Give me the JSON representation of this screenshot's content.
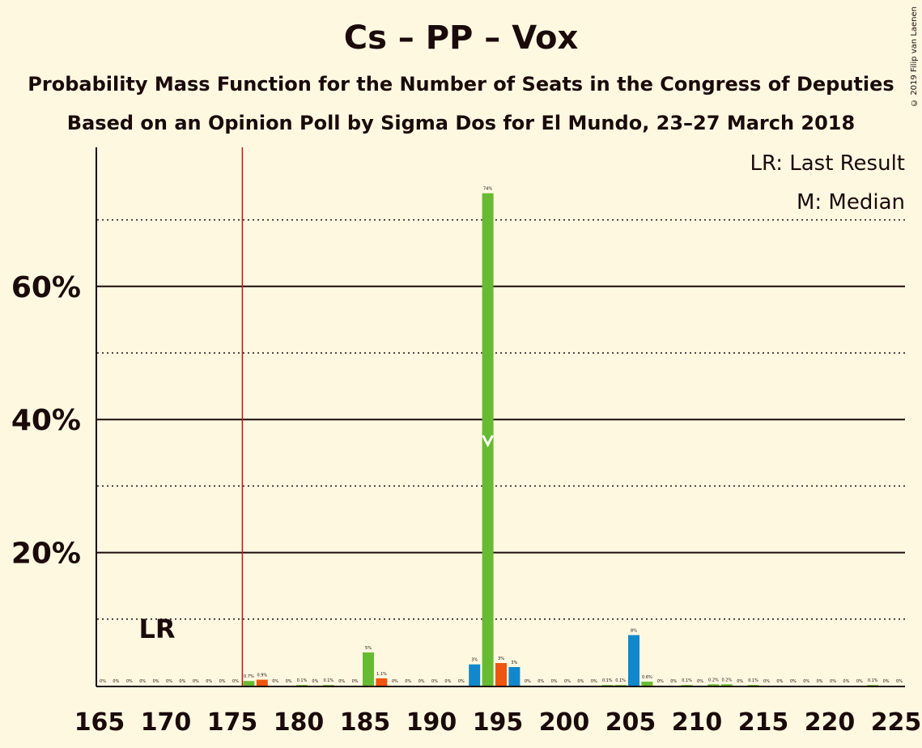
{
  "header": {
    "title": "Cs – PP – Vox",
    "subtitle": "Probability Mass Function for the Number of Seats in the Congress of Deputies",
    "subtitle2": "Based on an Opinion Poll by Sigma Dos for El Mundo, 23–27 March 2018",
    "copyright": "© 2019 Filip van Laenen"
  },
  "legend": {
    "lr": "LR: Last Result",
    "m": "M: Median"
  },
  "colors": {
    "background": "#fff8e1",
    "green": "#66bb33",
    "orange": "#ee5511",
    "blue": "#1188cc",
    "lr_line": "#cc1111",
    "text": "#1a0a0a"
  },
  "chart_data": {
    "type": "bar",
    "xlim": [
      165,
      225
    ],
    "ylim": [
      0,
      80
    ],
    "yticks_major": [
      20,
      40,
      60
    ],
    "ytick_labels": [
      "20%",
      "40%",
      "60%"
    ],
    "yticks_minor": [
      10,
      30,
      50,
      70
    ],
    "xticks": [
      165,
      170,
      175,
      180,
      185,
      190,
      195,
      200,
      205,
      210,
      215,
      220,
      225
    ],
    "last_result": {
      "seat": 176,
      "label": "LR"
    },
    "median": {
      "seat": 194
    },
    "bars": [
      {
        "x": 165,
        "v": 0,
        "c": "green",
        "label": "0%"
      },
      {
        "x": 166,
        "v": 0,
        "c": "green",
        "label": "0%"
      },
      {
        "x": 167,
        "v": 0,
        "c": "green",
        "label": "0%"
      },
      {
        "x": 168,
        "v": 0,
        "c": "green",
        "label": "0%"
      },
      {
        "x": 169,
        "v": 0,
        "c": "green",
        "label": "0%"
      },
      {
        "x": 170,
        "v": 0,
        "c": "green",
        "label": "0%"
      },
      {
        "x": 171,
        "v": 0,
        "c": "green",
        "label": "0%"
      },
      {
        "x": 172,
        "v": 0,
        "c": "green",
        "label": "0%"
      },
      {
        "x": 173,
        "v": 0,
        "c": "green",
        "label": "0%"
      },
      {
        "x": 174,
        "v": 0,
        "c": "green",
        "label": "0%"
      },
      {
        "x": 175,
        "v": 0,
        "c": "green",
        "label": "0%"
      },
      {
        "x": 176,
        "v": 0.7,
        "c": "green",
        "label": "0.7%"
      },
      {
        "x": 177,
        "v": 0.9,
        "c": "orange",
        "label": "0.9%"
      },
      {
        "x": 178,
        "v": 0,
        "c": "green",
        "label": "0%"
      },
      {
        "x": 179,
        "v": 0,
        "c": "green",
        "label": "0%"
      },
      {
        "x": 180,
        "v": 0.1,
        "c": "green",
        "label": "0.1%"
      },
      {
        "x": 181,
        "v": 0,
        "c": "green",
        "label": "0%"
      },
      {
        "x": 182,
        "v": 0.1,
        "c": "green",
        "label": "0.1%"
      },
      {
        "x": 183,
        "v": 0,
        "c": "green",
        "label": "0%"
      },
      {
        "x": 184,
        "v": 0,
        "c": "green",
        "label": "0%"
      },
      {
        "x": 185,
        "v": 5,
        "c": "green",
        "label": "5%"
      },
      {
        "x": 186,
        "v": 1.1,
        "c": "orange",
        "label": "1.1%"
      },
      {
        "x": 187,
        "v": 0,
        "c": "green",
        "label": "0%"
      },
      {
        "x": 188,
        "v": 0,
        "c": "green",
        "label": "0%"
      },
      {
        "x": 189,
        "v": 0,
        "c": "green",
        "label": "0%"
      },
      {
        "x": 190,
        "v": 0,
        "c": "green",
        "label": "0%"
      },
      {
        "x": 191,
        "v": 0,
        "c": "green",
        "label": "0%"
      },
      {
        "x": 192,
        "v": 0,
        "c": "green",
        "label": "0%"
      },
      {
        "x": 193,
        "v": 3.2,
        "c": "blue",
        "label": "3%"
      },
      {
        "x": 194,
        "v": 74,
        "c": "green",
        "label": "74%"
      },
      {
        "x": 195,
        "v": 3.4,
        "c": "orange",
        "label": "3%"
      },
      {
        "x": 196,
        "v": 2.8,
        "c": "blue",
        "label": "3%"
      },
      {
        "x": 197,
        "v": 0,
        "c": "green",
        "label": "0%"
      },
      {
        "x": 198,
        "v": 0,
        "c": "green",
        "label": "0%"
      },
      {
        "x": 199,
        "v": 0,
        "c": "green",
        "label": "0%"
      },
      {
        "x": 200,
        "v": 0,
        "c": "green",
        "label": "0%"
      },
      {
        "x": 201,
        "v": 0,
        "c": "green",
        "label": "0%"
      },
      {
        "x": 202,
        "v": 0,
        "c": "green",
        "label": "0%"
      },
      {
        "x": 203,
        "v": 0.1,
        "c": "green",
        "label": "0.1%"
      },
      {
        "x": 204,
        "v": 0.1,
        "c": "green",
        "label": "0.1%"
      },
      {
        "x": 205,
        "v": 7.6,
        "c": "blue",
        "label": "8%"
      },
      {
        "x": 206,
        "v": 0.6,
        "c": "green",
        "label": "0.6%"
      },
      {
        "x": 207,
        "v": 0,
        "c": "green",
        "label": "0%"
      },
      {
        "x": 208,
        "v": 0,
        "c": "green",
        "label": "0%"
      },
      {
        "x": 209,
        "v": 0.1,
        "c": "green",
        "label": "0.1%"
      },
      {
        "x": 210,
        "v": 0,
        "c": "green",
        "label": "0%"
      },
      {
        "x": 211,
        "v": 0.2,
        "c": "green",
        "label": "0.2%"
      },
      {
        "x": 212,
        "v": 0.2,
        "c": "green",
        "label": "0.2%"
      },
      {
        "x": 213,
        "v": 0,
        "c": "green",
        "label": "0%"
      },
      {
        "x": 214,
        "v": 0.1,
        "c": "green",
        "label": "0.1%"
      },
      {
        "x": 215,
        "v": 0,
        "c": "green",
        "label": "0%"
      },
      {
        "x": 216,
        "v": 0,
        "c": "green",
        "label": "0%"
      },
      {
        "x": 217,
        "v": 0,
        "c": "green",
        "label": "0%"
      },
      {
        "x": 218,
        "v": 0,
        "c": "green",
        "label": "0%"
      },
      {
        "x": 219,
        "v": 0,
        "c": "green",
        "label": "0%"
      },
      {
        "x": 220,
        "v": 0,
        "c": "green",
        "label": "0%"
      },
      {
        "x": 221,
        "v": 0,
        "c": "green",
        "label": "0%"
      },
      {
        "x": 222,
        "v": 0,
        "c": "green",
        "label": "0%"
      },
      {
        "x": 223,
        "v": 0.1,
        "c": "green",
        "label": "0.1%"
      },
      {
        "x": 224,
        "v": 0,
        "c": "green",
        "label": "0%"
      },
      {
        "x": 225,
        "v": 0,
        "c": "green",
        "label": "0%"
      }
    ]
  }
}
